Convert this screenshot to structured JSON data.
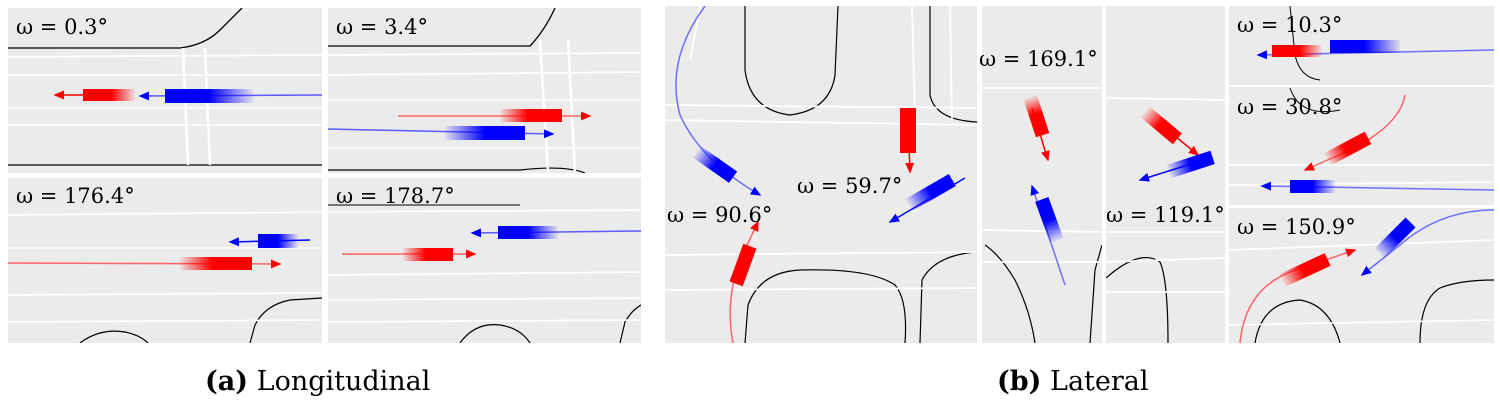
{
  "panels_a": [
    {
      "omega": "ω = 0.3°"
    },
    {
      "omega": "ω = 3.4°"
    },
    {
      "omega": "ω = 176.4°"
    },
    {
      "omega": "ω = 178.7°"
    }
  ],
  "panels_b": [
    {
      "omega": "ω = 90.6°"
    },
    {
      "omega": "ω = 59.7°"
    },
    {
      "omega": "ω = 169.1°"
    },
    {
      "omega": "ω = 119.1°"
    },
    {
      "omega": "ω = 10.3°"
    },
    {
      "omega": "ω = 30.8°"
    },
    {
      "omega": "ω = 150.9°"
    }
  ],
  "captions": {
    "a_tag": "(a)",
    "a_text": "Longitudinal",
    "b_tag": "(b)",
    "b_text": "Lateral"
  },
  "colors": {
    "background": "#ebebeb",
    "ego": "#ff0000",
    "other": "#0000ff",
    "lane": "#ffffff",
    "curb": "#000000"
  }
}
